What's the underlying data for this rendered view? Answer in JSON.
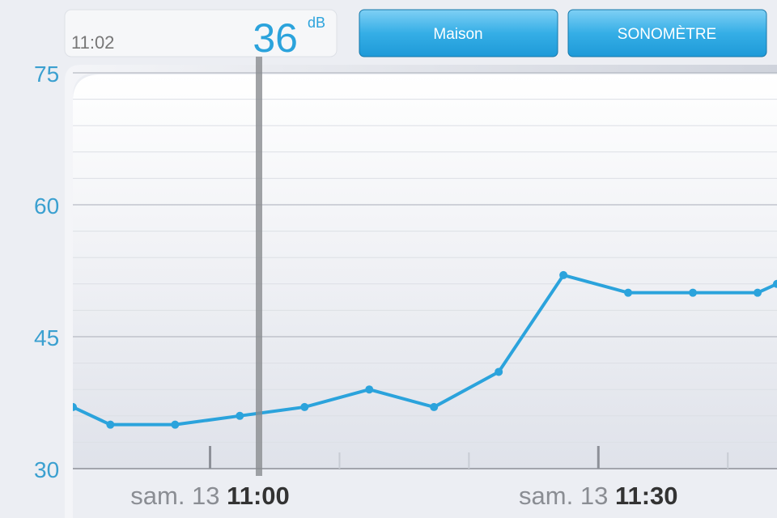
{
  "header": {
    "time": "11:02",
    "level": "36",
    "unit": "dB",
    "buttons": [
      "Maison",
      "SONOMÈTRE"
    ]
  },
  "chart_data": {
    "type": "line",
    "x": [
      649.4,
      652.3,
      657.3,
      662.3,
      667.3,
      672.3,
      677.3,
      682.3,
      687.3,
      692.3,
      697.3,
      702.3,
      703.8
    ],
    "series": [
      {
        "color": "#2ba3dc",
        "values": [
          37,
          35,
          35,
          36,
          37,
          39,
          37,
          41,
          52,
          50,
          50,
          50,
          51
        ]
      }
    ],
    "xlim": [
      649.4,
      703.8
    ],
    "xticks": [
      {
        "value": 660,
        "label": "11:00"
      },
      {
        "value": 690,
        "label": "11:30"
      }
    ],
    "xtick_day": "sam. 13",
    "xminorticks": [
      670,
      680,
      700
    ],
    "ylim": [
      30,
      75
    ],
    "yticks": [
      30,
      45,
      60,
      75
    ],
    "grid": true
  }
}
